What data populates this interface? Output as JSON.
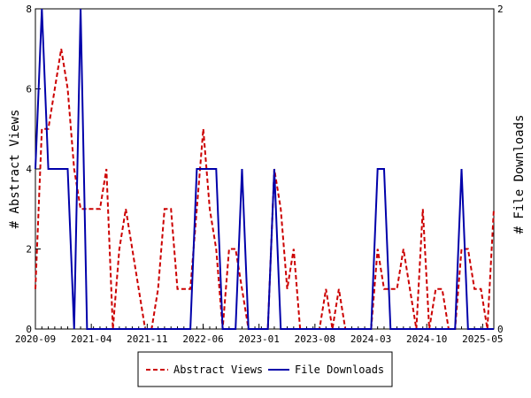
{
  "chart_data": {
    "type": "line",
    "x_ticks": [
      "2020-09",
      "2021-04",
      "2021-11",
      "2022-06",
      "2023-01",
      "2023-08",
      "2024-03",
      "2024-10",
      "2025-05"
    ],
    "y_left": {
      "label": "# Abstract Views",
      "min": 0,
      "max": 8,
      "ticks": [
        0,
        2,
        4,
        6,
        8
      ]
    },
    "y_right": {
      "label": "# File Downloads",
      "min": 0,
      "max": 2,
      "ticks": [
        0,
        2
      ]
    },
    "grid": false,
    "legend_position": "bottom",
    "series": [
      {
        "name": "Abstract Views",
        "axis": "left",
        "color": "#cc0000",
        "style": "dashed",
        "values": [
          1,
          5,
          5,
          6,
          7,
          6,
          4,
          3,
          3,
          3,
          3,
          4,
          0,
          2,
          3,
          2,
          1,
          0,
          0,
          1,
          3,
          3,
          1,
          1,
          1,
          3,
          5,
          3,
          2,
          0,
          2,
          2,
          1,
          0,
          0,
          0,
          0,
          4,
          3,
          1,
          2,
          0,
          0,
          0,
          0,
          1,
          0,
          1,
          0,
          0,
          0,
          0,
          0,
          2,
          1,
          1,
          1,
          2,
          1,
          0,
          3,
          0,
          1,
          1,
          0,
          0,
          2,
          2,
          1,
          1,
          0,
          3
        ]
      },
      {
        "name": "File Downloads",
        "axis": "right",
        "color": "#0000aa",
        "style": "solid",
        "values": [
          1,
          2,
          1,
          1,
          1,
          1,
          0,
          2,
          0,
          0,
          0,
          0,
          0,
          0,
          0,
          0,
          0,
          0,
          0,
          0,
          0,
          0,
          0,
          0,
          0,
          1,
          1,
          1,
          1,
          0,
          0,
          0,
          1,
          0,
          0,
          0,
          0,
          1,
          0,
          0,
          0,
          0,
          0,
          0,
          0,
          0,
          0,
          0,
          0,
          0,
          0,
          0,
          0,
          1,
          1,
          0,
          0,
          0,
          0,
          0,
          0,
          0,
          0,
          0,
          0,
          0,
          1,
          0,
          0,
          0,
          0,
          0
        ]
      }
    ]
  }
}
